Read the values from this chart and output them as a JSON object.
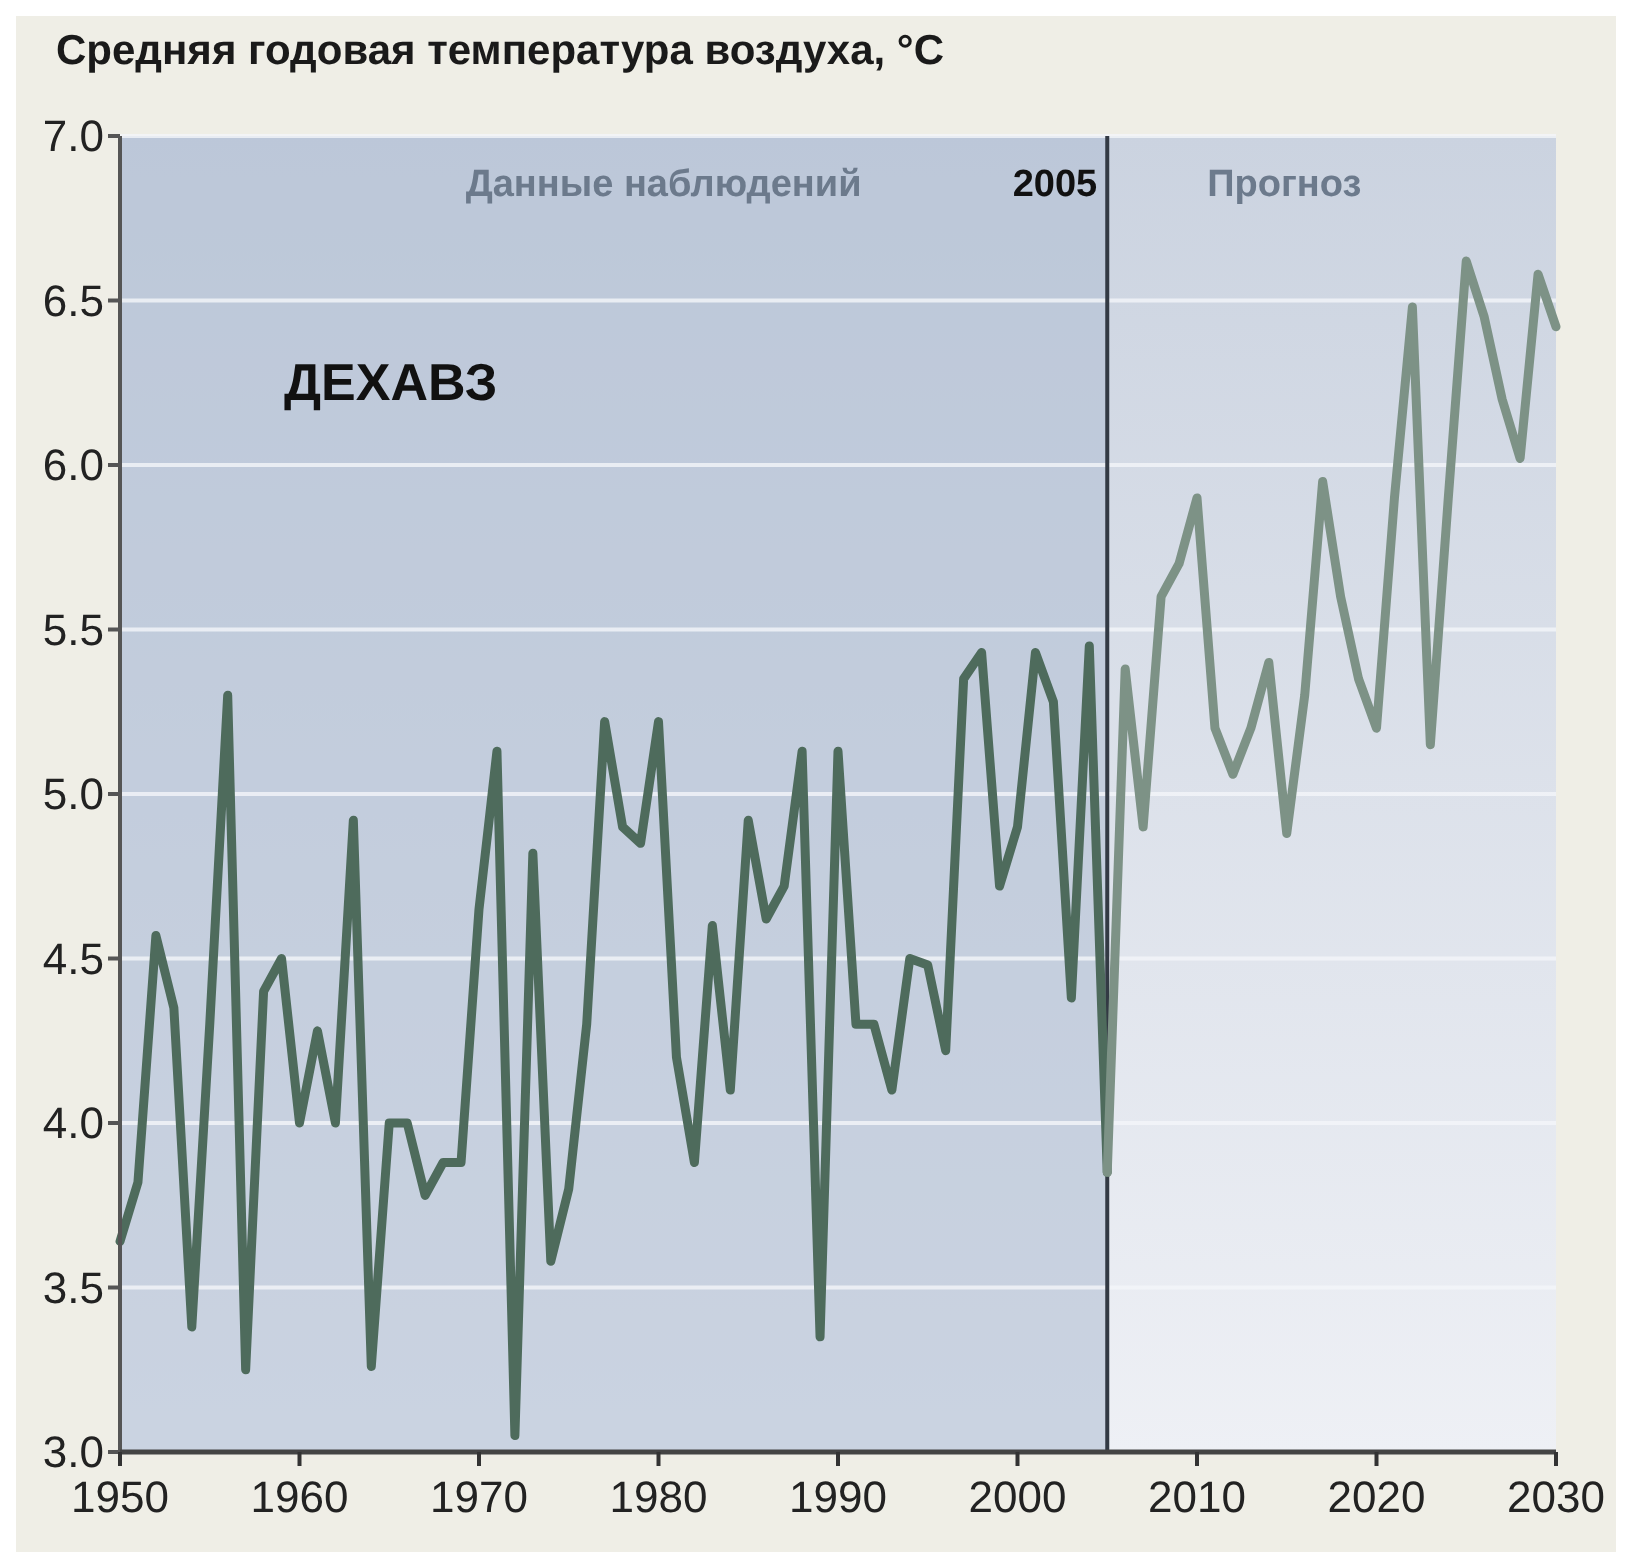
{
  "chart_data": {
    "type": "line",
    "title": "Средняя годовая температура воздуха, °C",
    "xlim": [
      1950,
      2030
    ],
    "xticks": [
      1950,
      1960,
      1970,
      1980,
      1990,
      2000,
      2010,
      2020,
      2030
    ],
    "ylim": [
      3.0,
      7.0
    ],
    "yticks": [
      {
        "value": 3.0,
        "label": "3.0"
      },
      {
        "value": 3.5,
        "label": "3.5"
      },
      {
        "value": 4.0,
        "label": "4.0"
      },
      {
        "value": 4.5,
        "label": "4.5"
      },
      {
        "value": 5.0,
        "label": "5.0"
      },
      {
        "value": 5.5,
        "label": "5.5"
      },
      {
        "value": 6.0,
        "label": "6.0"
      },
      {
        "value": 6.5,
        "label": "6.5"
      },
      {
        "value": 7.0,
        "label": "7.0"
      }
    ],
    "grid": "y",
    "line_style": "solid",
    "marker": "none",
    "bands": [
      {
        "axis": "x",
        "from": 1950,
        "to": 2005,
        "label": "Данные наблюдений",
        "color": "#b3bfd3"
      }
    ],
    "ref_lines": [
      {
        "axis": "x",
        "value": 2005,
        "label": "2005",
        "color": "#333a44"
      }
    ],
    "annotations": [
      "Прогноз",
      "ДЕХАВЗ"
    ],
    "series": [
      {
        "color": "#4e6b5c",
        "x": [
          1950,
          1951,
          1952,
          1953,
          1954,
          1955,
          1956,
          1957,
          1958,
          1959,
          1960,
          1961,
          1962,
          1963,
          1964,
          1965,
          1966,
          1967,
          1968,
          1969,
          1970,
          1971,
          1972,
          1973,
          1974,
          1975,
          1976,
          1977,
          1978,
          1979,
          1980,
          1981,
          1982,
          1983,
          1984,
          1985,
          1986,
          1987,
          1988,
          1989,
          1990,
          1991,
          1992,
          1993,
          1994,
          1995,
          1996,
          1997,
          1998,
          1999,
          2000,
          2001,
          2002,
          2003,
          2004,
          2005
        ],
        "values": [
          3.64,
          3.82,
          4.57,
          4.35,
          3.38,
          4.3,
          5.3,
          3.25,
          4.4,
          4.5,
          4.0,
          4.28,
          4.0,
          4.92,
          3.26,
          4.0,
          4.0,
          3.78,
          3.88,
          3.88,
          4.65,
          5.13,
          3.05,
          4.82,
          3.58,
          3.8,
          4.3,
          5.22,
          4.9,
          4.85,
          5.22,
          4.2,
          3.88,
          4.6,
          4.1,
          4.92,
          4.62,
          4.72,
          5.13,
          3.35,
          5.13,
          4.3,
          4.3,
          4.1,
          4.5,
          4.48,
          4.22,
          5.35,
          5.43,
          4.72,
          4.9,
          5.43,
          5.28,
          4.38,
          5.45,
          3.85
        ]
      },
      {
        "color": "#7d9286",
        "x": [
          2005,
          2006,
          2007,
          2008,
          2009,
          2010,
          2011,
          2012,
          2013,
          2014,
          2015,
          2016,
          2017,
          2018,
          2019,
          2020,
          2021,
          2022,
          2023,
          2024,
          2025,
          2026,
          2027,
          2028,
          2029,
          2030
        ],
        "values": [
          3.85,
          5.38,
          4.9,
          5.6,
          5.7,
          5.9,
          5.2,
          5.06,
          5.2,
          5.4,
          4.88,
          5.3,
          5.95,
          5.6,
          5.35,
          5.2,
          5.9,
          6.48,
          5.15,
          5.9,
          6.62,
          6.45,
          6.2,
          6.02,
          6.58,
          6.42
        ]
      }
    ]
  }
}
